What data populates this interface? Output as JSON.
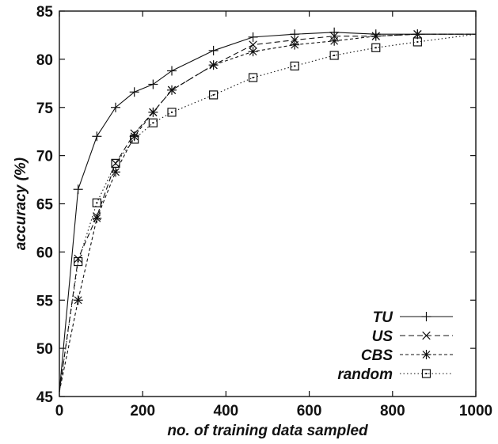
{
  "chart_data": {
    "type": "line",
    "xlabel": "no. of training data sampled",
    "ylabel": "accuracy (%)",
    "xlim": [
      0,
      1000
    ],
    "ylim": [
      45,
      85
    ],
    "xticks": [
      "0",
      "200",
      "400",
      "600",
      "800",
      "1000"
    ],
    "yticks": [
      "45",
      "50",
      "55",
      "60",
      "65",
      "70",
      "75",
      "80",
      "85"
    ],
    "grid": false,
    "legend_position": "bottom-right",
    "series": [
      {
        "name": "TU",
        "marker": "plus",
        "line": "solid",
        "x": [
          0,
          45,
          90,
          135,
          180,
          225,
          270,
          370,
          465,
          565,
          660,
          760,
          860,
          1000
        ],
        "y": [
          45.5,
          66.5,
          72.0,
          75.0,
          76.6,
          77.4,
          78.8,
          80.9,
          82.3,
          82.6,
          82.8,
          82.6,
          82.6,
          82.6
        ]
      },
      {
        "name": "US",
        "marker": "x",
        "line": "dashed",
        "x": [
          0,
          45,
          90,
          135,
          180,
          225,
          270,
          370,
          465,
          565,
          660,
          760,
          860,
          1000
        ],
        "y": [
          45.5,
          59.3,
          63.7,
          69.2,
          72.3,
          74.5,
          76.8,
          79.4,
          81.5,
          82.0,
          82.4,
          82.4,
          82.6,
          82.6
        ]
      },
      {
        "name": "CBS",
        "marker": "asterisk",
        "line": "dashed-fine",
        "x": [
          0,
          45,
          90,
          135,
          180,
          225,
          270,
          370,
          465,
          565,
          660,
          760,
          860,
          1000
        ],
        "y": [
          45.5,
          55.0,
          63.5,
          68.3,
          72.0,
          74.5,
          76.8,
          79.4,
          80.8,
          81.5,
          81.9,
          82.4,
          82.6,
          82.6
        ]
      },
      {
        "name": "random",
        "marker": "square",
        "line": "dotted",
        "x": [
          0,
          45,
          90,
          135,
          180,
          225,
          270,
          370,
          465,
          565,
          660,
          760,
          860,
          1000
        ],
        "y": [
          45.5,
          59.0,
          65.1,
          69.2,
          71.7,
          73.4,
          74.5,
          76.3,
          78.1,
          79.3,
          80.4,
          81.2,
          81.8,
          82.6
        ]
      }
    ]
  },
  "colors": {
    "line": "#111111",
    "background": "#ffffff"
  }
}
